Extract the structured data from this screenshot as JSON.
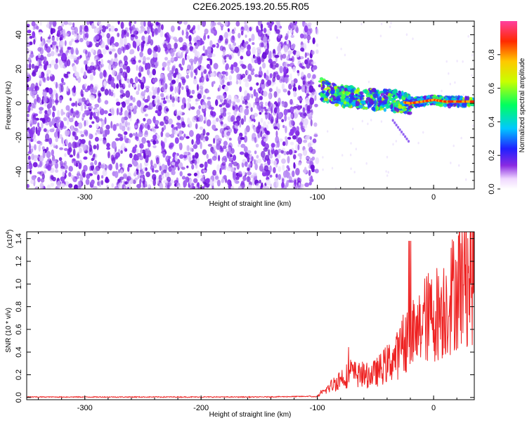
{
  "chart_data": [
    {
      "type": "heatmap",
      "title": "C2E6.2025.193.20.55.R05",
      "xlabel": "Height of straight line (km)",
      "ylabel": "Frequency (Hz)",
      "xlim": [
        -350,
        35
      ],
      "ylim": [
        -50,
        48
      ],
      "xticks": [
        -300,
        -200,
        -100,
        0
      ],
      "yticks": [
        -40,
        -20,
        0,
        20,
        40
      ],
      "colorbar": {
        "label": "Normalized spectral amplitude",
        "range": [
          0,
          1
        ],
        "ticks": [
          0.0,
          0.2,
          0.4,
          0.6,
          0.8
        ]
      },
      "description_points": {
        "noise_region_x": [
          -350,
          -100
        ],
        "signal_trace": [
          {
            "x": -98,
            "y": 9
          },
          {
            "x": -90,
            "y": 6
          },
          {
            "x": -80,
            "y": 4
          },
          {
            "x": -70,
            "y": 4
          },
          {
            "x": -60,
            "y": 3
          },
          {
            "x": -50,
            "y": 2
          },
          {
            "x": -40,
            "y": 2
          },
          {
            "x": -30,
            "y": 1
          },
          {
            "x": -20,
            "y": 0
          },
          {
            "x": -10,
            "y": 1
          },
          {
            "x": 0,
            "y": 2
          },
          {
            "x": 10,
            "y": 1
          },
          {
            "x": 20,
            "y": 1
          },
          {
            "x": 35,
            "y": 1
          }
        ]
      }
    },
    {
      "type": "line",
      "xlabel": "Height of straight line (km)",
      "ylabel": "SNR (10 * v/v)",
      "ylabel_multiplier": "(x10",
      "ylabel_multiplier_exp": "4",
      "ylabel_multiplier_close": ")",
      "xlim": [
        -350,
        35
      ],
      "ylim": [
        -0.02,
        1.46
      ],
      "xticks": [
        -300,
        -200,
        -100,
        0
      ],
      "yticks": [
        0.0,
        0.2,
        0.4,
        0.6,
        0.8,
        1.0,
        1.2,
        1.4
      ],
      "color": "#ee2222",
      "series": [
        {
          "x": [
            -350,
            -300,
            -250,
            -200,
            -150,
            -110,
            -100,
            -90,
            -80,
            -70,
            -60,
            -50,
            -40,
            -30,
            -25,
            -20,
            -15,
            -10,
            0,
            10,
            20,
            30,
            35
          ],
          "y": [
            0.0,
            0.0,
            0.0,
            0.0,
            0.0,
            0.005,
            0.01,
            0.1,
            0.2,
            0.25,
            0.22,
            0.25,
            0.35,
            0.45,
            0.6,
            0.7,
            0.6,
            0.8,
            0.85,
            0.95,
            1.15,
            1.25,
            1.3
          ]
        }
      ]
    }
  ]
}
